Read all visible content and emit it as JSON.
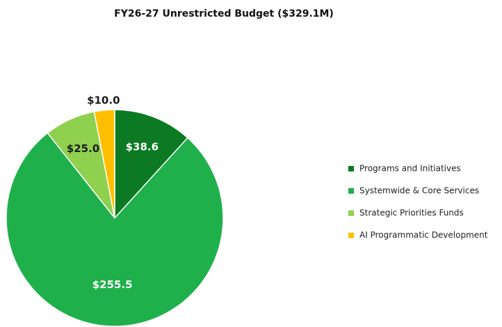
{
  "chart_data": {
    "type": "pie",
    "title": "FY26-27 Unrestricted Budget ($329.1M)",
    "categories": [
      "Programs and Initiatives",
      "Systemwide & Core Services",
      "Strategic Priorities Funds",
      "AI Programmatic Development"
    ],
    "values": [
      38.6,
      255.5,
      25.0,
      10.0
    ],
    "value_labels": [
      "$38.6",
      "$255.5",
      "$25.0",
      "$10.0"
    ],
    "colors": [
      "#0b7a22",
      "#1fb04b",
      "#8fd14f",
      "#ffbf00"
    ],
    "legend": "right"
  }
}
